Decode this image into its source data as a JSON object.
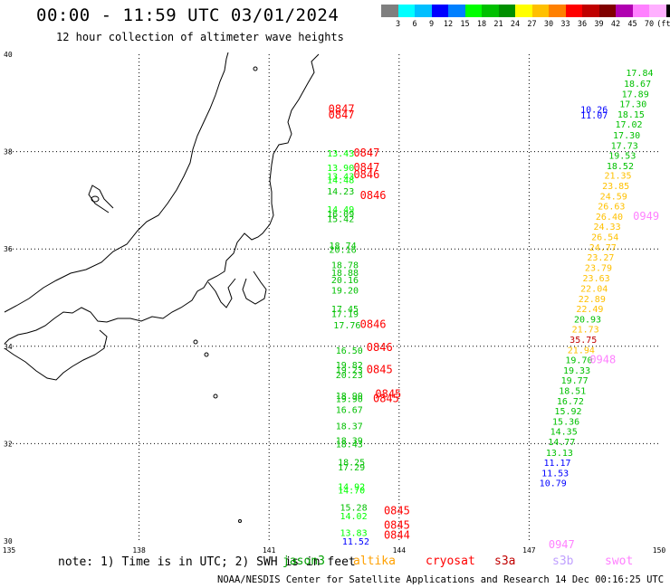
{
  "header": {
    "title": "00:00 - 11:59 UTC 03/01/2024",
    "subtitle": "12 hour collection of altimeter wave heights"
  },
  "colorbar": {
    "colors": [
      "#7f7f7f",
      "#00ffff",
      "#00bfff",
      "#0000ff",
      "#0080ff",
      "#00ff00",
      "#00c000",
      "#009000",
      "#ffff00",
      "#ffc000",
      "#ff8000",
      "#ff0000",
      "#c00000",
      "#800000",
      "#b000b0",
      "#ff80ff",
      "#ffb0ff",
      "#000000"
    ],
    "labels": [
      "3",
      "6",
      "9",
      "12",
      "15",
      "18",
      "21",
      "24",
      "27",
      "30",
      "33",
      "36",
      "39",
      "42",
      "45",
      "70",
      "(ft)"
    ]
  },
  "axes": {
    "lat_labels": [
      "40",
      "38",
      "36",
      "34",
      "32",
      "30"
    ],
    "lon_labels": [
      "135",
      "138",
      "141",
      "144",
      "147",
      "150"
    ]
  },
  "chart_data": {
    "type": "map",
    "lon_range": [
      135,
      150
    ],
    "lat_range": [
      30,
      40
    ],
    "grid": true,
    "points": [
      {
        "lon": 148.5,
        "lat": 38.8,
        "label": "10.26",
        "color": "#0000ff"
      },
      {
        "lon": 148.5,
        "lat": 38.68,
        "label": "11.07",
        "color": "#0000ff"
      },
      {
        "lon": 142.67,
        "lat": 38.8,
        "label": "0847",
        "color": "#ff0000",
        "big": true
      },
      {
        "lon": 142.67,
        "lat": 38.68,
        "label": "0847",
        "color": "#ff0000",
        "big": true
      },
      {
        "lon": 149.55,
        "lat": 39.55,
        "label": "17.84",
        "color": "#00c000"
      },
      {
        "lon": 149.5,
        "lat": 39.33,
        "label": "18.67",
        "color": "#00c000"
      },
      {
        "lon": 149.45,
        "lat": 39.12,
        "label": "17.89",
        "color": "#00c000"
      },
      {
        "lon": 149.4,
        "lat": 38.91,
        "label": "17.30",
        "color": "#00c000"
      },
      {
        "lon": 149.35,
        "lat": 38.7,
        "label": "18.15",
        "color": "#00c000"
      },
      {
        "lon": 149.3,
        "lat": 38.49,
        "label": "17.02",
        "color": "#00c000"
      },
      {
        "lon": 149.25,
        "lat": 38.27,
        "label": "17.30",
        "color": "#00c000"
      },
      {
        "lon": 149.2,
        "lat": 38.06,
        "label": "17.73",
        "color": "#00c000"
      },
      {
        "lon": 149.15,
        "lat": 37.85,
        "label": "19.53",
        "color": "#00c000"
      },
      {
        "lon": 149.1,
        "lat": 37.64,
        "label": "18.52",
        "color": "#00c000"
      },
      {
        "lon": 149.05,
        "lat": 37.44,
        "label": "21.35",
        "color": "#ffc000"
      },
      {
        "lon": 149.0,
        "lat": 37.23,
        "label": "23.85",
        "color": "#ffc000"
      },
      {
        "lon": 148.95,
        "lat": 37.02,
        "label": "24.59",
        "color": "#ffc000"
      },
      {
        "lon": 148.9,
        "lat": 36.81,
        "label": "26.63",
        "color": "#ffc000"
      },
      {
        "lon": 148.85,
        "lat": 36.6,
        "label": "26.40",
        "color": "#ffc000"
      },
      {
        "lon": 148.8,
        "lat": 36.39,
        "label": "24.33",
        "color": "#ffc000"
      },
      {
        "lon": 148.75,
        "lat": 36.18,
        "label": "26.54",
        "color": "#ffc000"
      },
      {
        "lon": 148.7,
        "lat": 35.97,
        "label": "24.77",
        "color": "#ffc000"
      },
      {
        "lon": 148.65,
        "lat": 35.76,
        "label": "23.27",
        "color": "#ffc000"
      },
      {
        "lon": 148.6,
        "lat": 35.55,
        "label": "23.79",
        "color": "#ffc000"
      },
      {
        "lon": 148.55,
        "lat": 35.33,
        "label": "23.63",
        "color": "#ffc000"
      },
      {
        "lon": 148.5,
        "lat": 35.12,
        "label": "22.04",
        "color": "#ffc000"
      },
      {
        "lon": 148.45,
        "lat": 34.91,
        "label": "22.89",
        "color": "#ffc000"
      },
      {
        "lon": 148.4,
        "lat": 34.7,
        "label": "22.49",
        "color": "#ffc000"
      },
      {
        "lon": 148.35,
        "lat": 34.49,
        "label": "20.93",
        "color": "#00c000"
      },
      {
        "lon": 148.3,
        "lat": 34.28,
        "label": "21.73",
        "color": "#ffc000"
      },
      {
        "lon": 148.25,
        "lat": 34.07,
        "label": "35.75",
        "color": "#c00000"
      },
      {
        "lon": 148.2,
        "lat": 33.86,
        "label": "21.94",
        "color": "#ffc000"
      },
      {
        "lon": 148.15,
        "lat": 33.65,
        "label": "19.70",
        "color": "#00c000"
      },
      {
        "lon": 148.1,
        "lat": 33.44,
        "label": "19.33",
        "color": "#00c000"
      },
      {
        "lon": 148.05,
        "lat": 33.23,
        "label": "19.77",
        "color": "#00c000"
      },
      {
        "lon": 148.0,
        "lat": 33.02,
        "label": "18.51",
        "color": "#00c000"
      },
      {
        "lon": 147.95,
        "lat": 32.81,
        "label": "16.72",
        "color": "#00c000"
      },
      {
        "lon": 147.9,
        "lat": 32.6,
        "label": "15.92",
        "color": "#00c000"
      },
      {
        "lon": 147.85,
        "lat": 32.39,
        "label": "15.36",
        "color": "#00c000"
      },
      {
        "lon": 147.8,
        "lat": 32.18,
        "label": "14.35",
        "color": "#00c000"
      },
      {
        "lon": 147.75,
        "lat": 31.97,
        "label": "14.77",
        "color": "#00c000"
      },
      {
        "lon": 147.7,
        "lat": 31.75,
        "label": "13.13",
        "color": "#00c000"
      },
      {
        "lon": 147.65,
        "lat": 31.54,
        "label": "11.17",
        "color": "#0000ff"
      },
      {
        "lon": 147.6,
        "lat": 31.33,
        "label": "11.53",
        "color": "#0000ff"
      },
      {
        "lon": 147.55,
        "lat": 31.12,
        "label": "10.79",
        "color": "#0000ff"
      },
      {
        "lon": 142.65,
        "lat": 37.9,
        "label": "13.43",
        "color": "#00ff00"
      },
      {
        "lon": 142.65,
        "lat": 37.6,
        "label": "13.90",
        "color": "#00ff00"
      },
      {
        "lon": 142.65,
        "lat": 37.43,
        "label": "13.43",
        "color": "#00ff00"
      },
      {
        "lon": 142.65,
        "lat": 37.35,
        "label": "14.48",
        "color": "#00ff00"
      },
      {
        "lon": 142.65,
        "lat": 37.12,
        "label": "14.23",
        "color": "#00c000"
      },
      {
        "lon": 142.65,
        "lat": 36.75,
        "label": "14.49",
        "color": "#00ff00"
      },
      {
        "lon": 142.65,
        "lat": 36.65,
        "label": "16.09",
        "color": "#00c000"
      },
      {
        "lon": 142.65,
        "lat": 36.55,
        "label": "15.42",
        "color": "#00c000"
      },
      {
        "lon": 142.7,
        "lat": 36.0,
        "label": "18.74",
        "color": "#00c000"
      },
      {
        "lon": 142.7,
        "lat": 35.92,
        "label": "20.16",
        "color": "#00c000"
      },
      {
        "lon": 142.75,
        "lat": 35.6,
        "label": "18.78",
        "color": "#00c000"
      },
      {
        "lon": 142.75,
        "lat": 35.45,
        "label": "18.88",
        "color": "#00c000"
      },
      {
        "lon": 142.75,
        "lat": 35.3,
        "label": "20.16",
        "color": "#00c000"
      },
      {
        "lon": 142.75,
        "lat": 35.08,
        "label": "19.20",
        "color": "#00c000"
      },
      {
        "lon": 142.75,
        "lat": 34.7,
        "label": "17.45",
        "color": "#00c000"
      },
      {
        "lon": 142.75,
        "lat": 34.6,
        "label": "17.19",
        "color": "#00c000"
      },
      {
        "lon": 142.8,
        "lat": 34.37,
        "label": "17.76",
        "color": "#00c000"
      },
      {
        "lon": 142.85,
        "lat": 33.85,
        "label": "16.50",
        "color": "#00c000"
      },
      {
        "lon": 142.85,
        "lat": 33.55,
        "label": "19.82",
        "color": "#00c000"
      },
      {
        "lon": 142.85,
        "lat": 33.45,
        "label": "19.23",
        "color": "#00c000"
      },
      {
        "lon": 142.85,
        "lat": 33.35,
        "label": "20.23",
        "color": "#00c000"
      },
      {
        "lon": 142.85,
        "lat": 32.92,
        "label": "18.90",
        "color": "#00c000"
      },
      {
        "lon": 142.85,
        "lat": 32.85,
        "label": "19.90",
        "color": "#00c000"
      },
      {
        "lon": 142.85,
        "lat": 32.63,
        "label": "16.67",
        "color": "#00c000"
      },
      {
        "lon": 142.85,
        "lat": 32.3,
        "label": "18.37",
        "color": "#00c000"
      },
      {
        "lon": 142.85,
        "lat": 32.0,
        "label": "18.39",
        "color": "#00c000"
      },
      {
        "lon": 142.85,
        "lat": 31.92,
        "label": "18.43",
        "color": "#00c000"
      },
      {
        "lon": 142.9,
        "lat": 31.55,
        "label": "18.25",
        "color": "#00c000"
      },
      {
        "lon": 142.9,
        "lat": 31.45,
        "label": "17.29",
        "color": "#00c000"
      },
      {
        "lon": 142.9,
        "lat": 31.05,
        "label": "14.92",
        "color": "#00ff00"
      },
      {
        "lon": 142.9,
        "lat": 30.98,
        "label": "14.70",
        "color": "#00ff00"
      },
      {
        "lon": 142.95,
        "lat": 30.62,
        "label": "15.28",
        "color": "#00c000"
      },
      {
        "lon": 142.95,
        "lat": 30.45,
        "label": "14.02",
        "color": "#00ff00"
      },
      {
        "lon": 142.95,
        "lat": 30.1,
        "label": "13.83",
        "color": "#00ff00"
      },
      {
        "lon": 143.0,
        "lat": 29.93,
        "label": "11.52",
        "color": "#0000ff"
      },
      {
        "lon": 143.25,
        "lat": 37.9,
        "label": "0847",
        "color": "#ff0000",
        "big": true
      },
      {
        "lon": 143.25,
        "lat": 37.6,
        "label": "0847",
        "color": "#ff0000",
        "big": true
      },
      {
        "lon": 143.25,
        "lat": 37.45,
        "label": "0846",
        "color": "#ff0000",
        "big": true
      },
      {
        "lon": 143.4,
        "lat": 37.03,
        "label": "0846",
        "color": "#ff0000",
        "big": true
      },
      {
        "lon": 143.4,
        "lat": 34.38,
        "label": "0846",
        "color": "#ff0000",
        "big": true
      },
      {
        "lon": 143.55,
        "lat": 33.9,
        "label": "0846",
        "color": "#ff0000",
        "big": true
      },
      {
        "lon": 143.55,
        "lat": 33.45,
        "label": "0845",
        "color": "#ff0000",
        "big": true
      },
      {
        "lon": 143.75,
        "lat": 32.95,
        "label": "0845",
        "color": "#ff0000",
        "big": true
      },
      {
        "lon": 143.7,
        "lat": 32.85,
        "label": "0845",
        "color": "#ff0000",
        "big": true
      },
      {
        "lon": 143.95,
        "lat": 30.55,
        "label": "0845",
        "color": "#ff0000",
        "big": true
      },
      {
        "lon": 143.95,
        "lat": 30.25,
        "label": "0845",
        "color": "#ff0000",
        "big": true
      },
      {
        "lon": 143.95,
        "lat": 30.05,
        "label": "0844",
        "color": "#ff0000",
        "big": true
      },
      {
        "lon": 149.7,
        "lat": 36.6,
        "label": "0949",
        "color": "#ff80ff",
        "big": true
      },
      {
        "lon": 148.7,
        "lat": 33.65,
        "label": "0948",
        "color": "#ff80ff",
        "big": true
      },
      {
        "lon": 147.75,
        "lat": 29.85,
        "label": "0947",
        "color": "#ff80ff",
        "big": true
      }
    ]
  },
  "footer": {
    "note": "note: 1) Time is in UTC; 2) SWH is in feet",
    "credit": "NOAA/NESDIS Center for Satellite Applications and Research   14 Dec 00:16:25 UTC 2024"
  },
  "legend": [
    {
      "label": "jason3",
      "color": "#00a000"
    },
    {
      "label": "altika",
      "color": "#ffa000"
    },
    {
      "label": "cryosat",
      "color": "#ff0000"
    },
    {
      "label": "s3a",
      "color": "#c00000"
    },
    {
      "label": "s3b",
      "color": "#c0a0ff"
    },
    {
      "label": "swot",
      "color": "#ff80ff"
    }
  ]
}
